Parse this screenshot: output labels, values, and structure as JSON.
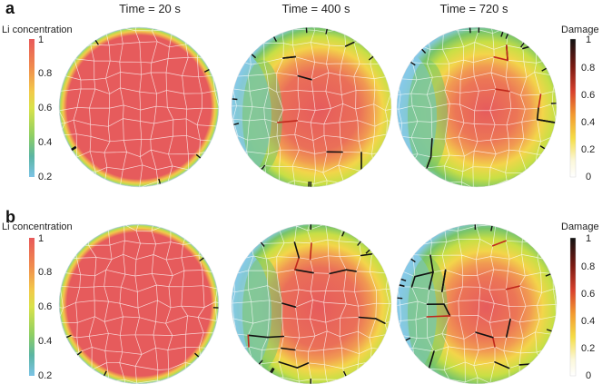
{
  "figure": {
    "panels": [
      {
        "letter": "a"
      },
      {
        "letter": "b"
      }
    ],
    "column_titles": [
      "Time = 20 s",
      "Time = 400 s",
      "Time = 720 s"
    ],
    "li_colorbar": {
      "label": "Li concentration",
      "ticks": [
        "1",
        "0.8",
        "0.6",
        "0.4",
        "0.2"
      ],
      "colors": [
        "#e8595a",
        "#f08a4e",
        "#f2c94a",
        "#d9e24a",
        "#8fcf63",
        "#5bb5a3",
        "#7cc3e6"
      ]
    },
    "damage_colorbar": {
      "label": "Damage",
      "ticks": [
        "1",
        "0.8",
        "0.6",
        "0.4",
        "0.2",
        "0"
      ],
      "colors": [
        "#111111",
        "#7a1a12",
        "#d8402c",
        "#f39a2e",
        "#f5dd45",
        "#fbf7d8",
        "#ffffff"
      ]
    },
    "field_colors": {
      "high": "#e65b5c",
      "mid_high": "#f19a52",
      "mid": "#f3d54a",
      "mid_low": "#c8df45",
      "low_green": "#77c46a",
      "low_blue": "#86c9e8",
      "grain_boundary": "#ffffff",
      "crack": "#111111",
      "crack_tip": "#c0281c"
    }
  }
}
